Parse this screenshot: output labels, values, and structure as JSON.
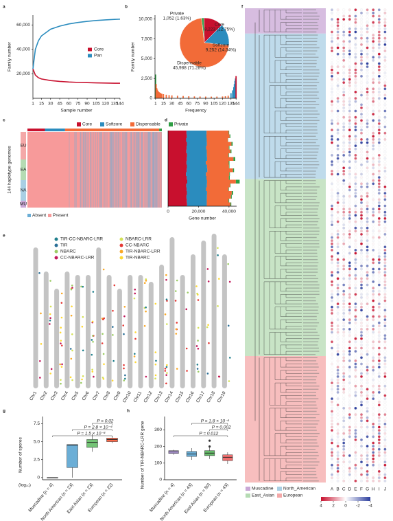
{
  "chart_data": [
    {
      "panel": "a",
      "type": "line",
      "xlabel": "Sample number",
      "ylabel": "Family number",
      "x": [
        1,
        5,
        10,
        15,
        30,
        45,
        60,
        75,
        90,
        105,
        120,
        135,
        144
      ],
      "xlim": [
        1,
        144
      ],
      "xticks": [
        1,
        15,
        30,
        45,
        60,
        75,
        90,
        105,
        120,
        135,
        144
      ],
      "ylim": [
        0,
        68000
      ],
      "yticks": [
        {
          "value": 20000,
          "label": "20,000"
        },
        {
          "value": 40000,
          "label": "40,000"
        },
        {
          "value": 60000,
          "label": "60,000"
        }
      ],
      "series": [
        {
          "name": "Core",
          "color": "#c8102e",
          "values": [
            24000,
            19000,
            16800,
            15800,
            14500,
            13800,
            13300,
            13000,
            12800,
            12600,
            12450,
            12350,
            12300
          ]
        },
        {
          "name": "Pan",
          "color": "#2b8cbe",
          "values": [
            24000,
            40000,
            47000,
            51000,
            56500,
            59000,
            60800,
            62000,
            62900,
            63600,
            64100,
            64500,
            64700
          ]
        }
      ]
    },
    {
      "panel": "b",
      "type": "bar",
      "xlabel": "Frequency",
      "ylabel": "Family number",
      "x": [
        1,
        2,
        3,
        4,
        5,
        6,
        7,
        8,
        9,
        10,
        12,
        15,
        20,
        25,
        30,
        40,
        50,
        60,
        70,
        80,
        90,
        100,
        110,
        120,
        125,
        130,
        135,
        138,
        140,
        141,
        142,
        143,
        144
      ],
      "values": [
        3000,
        1800,
        1300,
        1100,
        950,
        850,
        780,
        720,
        680,
        640,
        580,
        520,
        450,
        400,
        370,
        320,
        290,
        260,
        240,
        225,
        215,
        210,
        215,
        230,
        260,
        320,
        650,
        1000,
        1400,
        1800,
        2200,
        2500,
        2800
      ],
      "colors": [
        "#2e9e44",
        "#f26b38",
        "#f26b38",
        "#f26b38",
        "#f26b38",
        "#f26b38",
        "#f26b38",
        "#f26b38",
        "#f26b38",
        "#f26b38",
        "#f26b38",
        "#f26b38",
        "#f26b38",
        "#f26b38",
        "#f26b38",
        "#f26b38",
        "#f26b38",
        "#f26b38",
        "#f26b38",
        "#f26b38",
        "#f26b38",
        "#f26b38",
        "#f26b38",
        "#f26b38",
        "#f26b38",
        "#f26b38",
        "#2b8cbe",
        "#2b8cbe",
        "#2b8cbe",
        "#2b8cbe",
        "#2b8cbe",
        "#2b8cbe",
        "#c8102e"
      ],
      "xlim": [
        0,
        145
      ],
      "xticks": [
        1,
        15,
        30,
        45,
        60,
        75,
        90,
        105,
        120,
        135,
        144
      ],
      "ylim": [
        0,
        10500
      ],
      "yticks": [
        0,
        {
          "value": 2500,
          "label": "2,500"
        },
        {
          "value": 5000,
          "label": "5,000"
        },
        {
          "value": 7500,
          "label": "7,500"
        },
        {
          "value": 10000,
          "label": "10,000"
        }
      ]
    },
    {
      "type": "pie",
      "categories": [
        "Private",
        "Core",
        "Softcore",
        "Dispensable"
      ],
      "values": [
        1052,
        8223,
        9252,
        45988
      ],
      "value_labels": [
        "1,052 (1.63%)",
        "8,223 (12.75%)",
        "9,252 (14.34%)",
        "45,988 (71.28%)"
      ],
      "colors": [
        "#2e9e44",
        "#c8102e",
        "#2b8cbe",
        "#f26b38"
      ]
    },
    {
      "panel": "c",
      "type": "presence-absence",
      "ylabel": "144 haplotype genomes",
      "legend": [
        {
          "name": "Core",
          "color": "#c8102e"
        },
        {
          "name": "Softcore",
          "color": "#2b8cbe"
        },
        {
          "name": "Dispensable",
          "color": "#f26b38"
        },
        {
          "name": "Private",
          "color": "#2e9e44"
        }
      ],
      "groups": [
        {
          "name": "EU",
          "color": "#f4a8a8"
        },
        {
          "name": "EA",
          "color": "#b5dbb3"
        },
        {
          "name": "NA",
          "color": "#a9cfe4"
        },
        {
          "name": "MU",
          "color": "#c9a7d6"
        }
      ],
      "states": [
        {
          "name": "Absent",
          "color": "#6baed6"
        },
        {
          "name": "Present",
          "color": "#f79a9a"
        }
      ]
    },
    {
      "panel": "d",
      "type": "stacked-bar-horizontal",
      "xlabel": "Gene number",
      "xlim": [
        0,
        45000
      ],
      "xticks": [
        0,
        {
          "value": 20000,
          "label": "20,000"
        },
        {
          "value": 40000,
          "label": "40,000"
        }
      ],
      "series": [
        {
          "color": "#c8102e",
          "values": [
            12100,
            12300,
            11900,
            12400,
            12200,
            12000,
            12500,
            12300,
            12100,
            12400,
            12200,
            11800,
            12300,
            12600,
            12000,
            12200,
            12400,
            12100,
            12300,
            12500
          ]
        },
        {
          "color": "#2b8cbe",
          "values": [
            13200,
            12900,
            13500,
            13100,
            12800,
            13400,
            13000,
            13300,
            12700,
            13200,
            13600,
            13100,
            12900,
            13000,
            13500,
            12800,
            13200,
            13400,
            13100,
            12900
          ]
        },
        {
          "color": "#f26b38",
          "values": [
            14500,
            15200,
            13800,
            16100,
            14900,
            15600,
            14200,
            17300,
            15000,
            14400,
            16800,
            15300,
            14700,
            18900,
            15100,
            14600,
            16200,
            15800,
            14300,
            15500
          ]
        },
        {
          "color": "#2e9e44",
          "values": [
            300,
            500,
            200,
            800,
            400,
            600,
            300,
            1200,
            500,
            300,
            700,
            400,
            600,
            2500,
            400,
            300,
            900,
            500,
            400,
            600
          ]
        }
      ]
    },
    {
      "panel": "e",
      "type": "ideogram",
      "legend": [
        {
          "name": "TIR-CC-NBARC-LRR",
          "color": "#1f7f8c"
        },
        {
          "name": "TIR",
          "color": "#2a6f97"
        },
        {
          "name": "NBARC",
          "color": "#9ccc65"
        },
        {
          "name": "CC-NBARC-LRR",
          "color": "#c2185b"
        },
        {
          "name": "NBARC-LRR",
          "color": "#d4e157"
        },
        {
          "name": "CC-NBARC",
          "color": "#e53935"
        },
        {
          "name": "TIR-NBARC-LRR",
          "color": "#f9a825"
        },
        {
          "name": "TIR-NBARC",
          "color": "#fdd835"
        }
      ],
      "categories": [
        "Chr1",
        "Chr2",
        "Chr3",
        "Chr4",
        "Chr5",
        "Chr6",
        "Chr7",
        "Chr8",
        "Chr9",
        "Chr10",
        "Chr11",
        "Chr12",
        "Chr13",
        "Chr14",
        "Chr15",
        "Chr16",
        "Chr17",
        "Chr18",
        "Chr19"
      ],
      "values": [
        205,
        170,
        145,
        170,
        165,
        165,
        205,
        165,
        145,
        165,
        165,
        155,
        180,
        220,
        165,
        195,
        215,
        225,
        195
      ]
    },
    {
      "panel": "f",
      "type": "heatmap",
      "groups": [
        {
          "name": "Muscadine",
          "color": "#c9a7d6"
        },
        {
          "name": "North_American",
          "color": "#a9cfe4"
        },
        {
          "name": "East_Asian",
          "color": "#b5dbb3"
        },
        {
          "name": "European",
          "color": "#f4a8a8"
        }
      ],
      "columns": [
        "A",
        "B",
        "C",
        "D",
        "E",
        "F",
        "G",
        "H",
        "I",
        "J"
      ],
      "colorbar": {
        "lim": [
          4,
          -4
        ],
        "ticks": [
          4,
          2,
          0,
          -2,
          -4
        ],
        "colors": [
          "#c8102e",
          "#ffffff",
          "#2c3e9e"
        ]
      }
    },
    {
      "panel": "g",
      "type": "box",
      "ylabel": "Number of spores",
      "ylabel_unit": "(log₁₀)",
      "categories": [
        "Muscadine (n = 4)",
        "North American (n = 23)",
        "East Asian (n = 23)",
        "European (n = 22)"
      ],
      "colors": [
        "#888888",
        "#6baed6",
        "#74c476",
        "#fb6a4a"
      ],
      "ylim": [
        -0.3,
        8.5
      ],
      "yticks": [
        0,
        2.5,
        {
          "value": 5,
          "label": "5.0"
        },
        7.5
      ],
      "min": [
        0,
        0,
        3.6,
        4.8
      ],
      "q1": [
        0,
        1.4,
        4.2,
        5.0
      ],
      "median": [
        0,
        4.5,
        4.9,
        5.3
      ],
      "q3": [
        0,
        4.6,
        5.3,
        5.5
      ],
      "max": [
        0,
        4.6,
        6.1,
        5.8
      ],
      "annotations": [
        "P = 0.02",
        "P = 2.8 × 10⁻⁴",
        "P = 1.5 × 10⁻⁸"
      ]
    },
    {
      "panel": "h",
      "type": "box",
      "ylabel": "Number of TIR-NBARC-LRR gene",
      "categories": [
        "Muscadine (n = 4)",
        "North American (n = 43)",
        "East Asian (n = 50)",
        "European (n = 43)"
      ],
      "colors": [
        "#b39ddb",
        "#6baed6",
        "#66bb6a",
        "#ef6f6f"
      ],
      "ylim": [
        0,
        380
      ],
      "yticks": [
        0,
        100,
        200,
        300
      ],
      "min": [
        150,
        120,
        125,
        95
      ],
      "q1": [
        158,
        140,
        145,
        115
      ],
      "median": [
        167,
        155,
        160,
        135
      ],
      "q3": [
        175,
        170,
        175,
        150
      ],
      "max": [
        180,
        190,
        195,
        165
      ],
      "outliers": [
        [],
        [],
        [
          235,
          200
        ],
        []
      ],
      "annotations": [
        "P = 1.8 × 10⁻⁴",
        "P = 0.002",
        "P = 0.012"
      ]
    }
  ]
}
